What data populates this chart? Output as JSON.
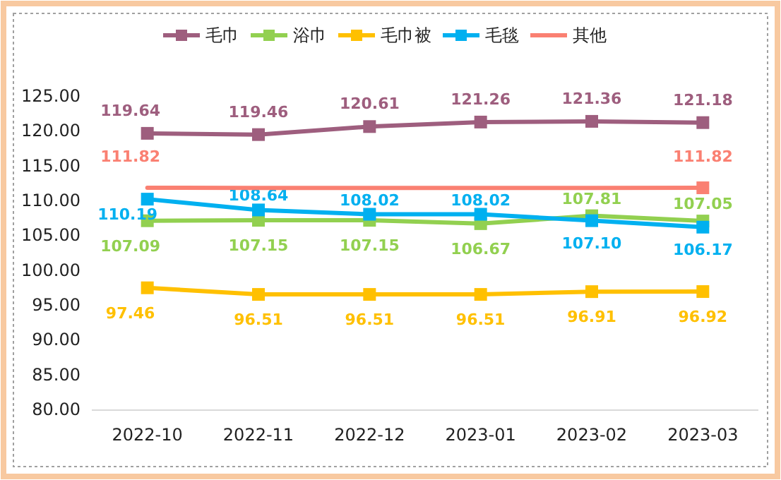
{
  "chart_data": {
    "type": "line",
    "categories": [
      "2022-10",
      "2022-11",
      "2022-12",
      "2023-01",
      "2023-02",
      "2023-03"
    ],
    "series": [
      {
        "name": "毛巾",
        "color": "#9e5e7e",
        "values": [
          119.64,
          119.46,
          120.61,
          121.26,
          121.36,
          121.18
        ],
        "value_labels": [
          "119.64",
          "119.46",
          "120.61",
          "121.26",
          "121.36",
          "121.18"
        ]
      },
      {
        "name": "浴巾",
        "color": "#92d050",
        "values": [
          107.09,
          107.15,
          107.15,
          106.67,
          107.81,
          107.05
        ],
        "value_labels": [
          "107.09",
          "107.15",
          "107.15",
          "106.67",
          "107.81",
          "107.05"
        ]
      },
      {
        "name": "毛巾被",
        "color": "#ffc000",
        "values": [
          97.46,
          96.51,
          96.51,
          96.51,
          96.91,
          96.92
        ],
        "value_labels": [
          "97.46",
          "96.51",
          "96.51",
          "96.51",
          "96.91",
          "96.92"
        ]
      },
      {
        "name": "毛毯",
        "color": "#00b0f0",
        "values": [
          110.19,
          108.64,
          108.02,
          108.02,
          107.1,
          106.17
        ],
        "value_labels": [
          "110.19",
          "108.64",
          "108.02",
          "108.02",
          "107.10",
          "106.17"
        ]
      },
      {
        "name": "其他",
        "color": "#fa8072",
        "values": [
          111.82,
          111.8,
          111.8,
          111.8,
          111.8,
          111.82
        ],
        "value_labels": [
          "111.82",
          null,
          null,
          null,
          null,
          "111.82"
        ],
        "marker": "none"
      }
    ],
    "ylim": [
      80,
      125
    ],
    "yticks": [
      {
        "value": 80,
        "label": "80.00"
      },
      {
        "value": 85,
        "label": "85.00"
      },
      {
        "value": 90,
        "label": "90.00"
      },
      {
        "value": 95,
        "label": "95.00"
      },
      {
        "value": 100,
        "label": "100.00"
      },
      {
        "value": 105,
        "label": "105.00"
      },
      {
        "value": 110,
        "label": "110.00"
      },
      {
        "value": 115,
        "label": "115.00"
      },
      {
        "value": 120,
        "label": "120.00"
      },
      {
        "value": 125,
        "label": "125.00"
      }
    ],
    "legend": "top",
    "marker": "square"
  }
}
